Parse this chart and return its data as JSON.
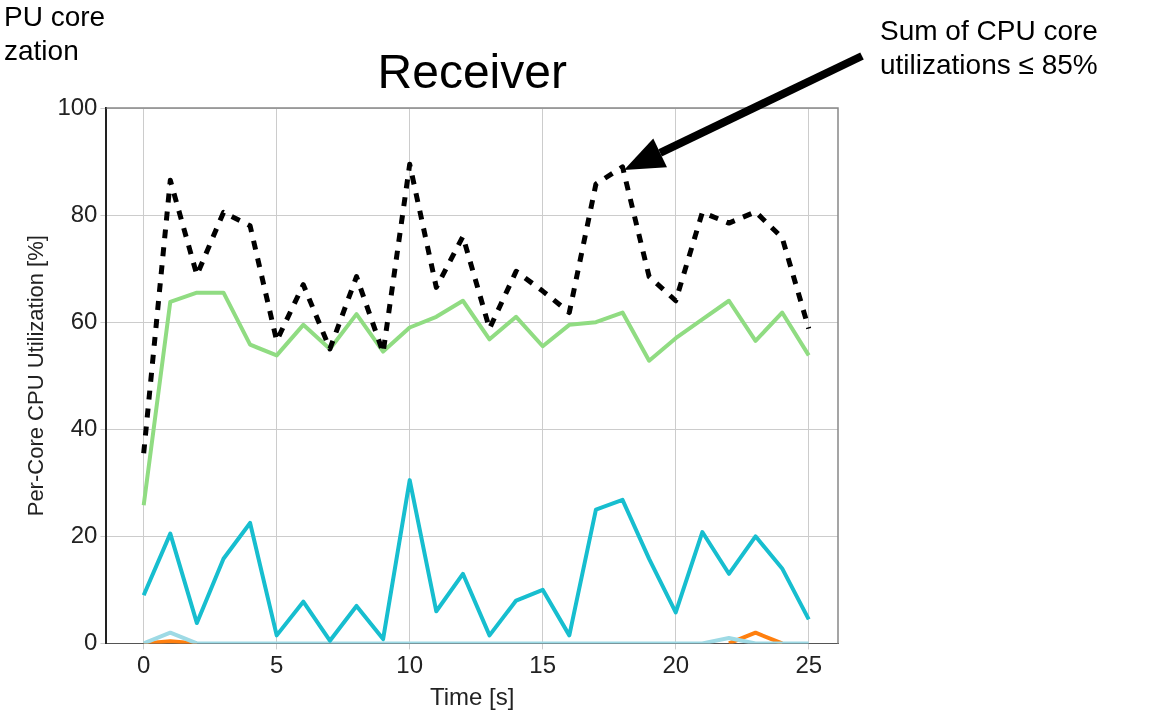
{
  "chart_data": {
    "type": "line",
    "title": "Receiver",
    "xlabel": "Time [s]",
    "ylabel": "Per-Core CPU Utilization [%]",
    "x": [
      0,
      1,
      2,
      3,
      4,
      5,
      6,
      7,
      8,
      9,
      10,
      11,
      12,
      13,
      14,
      15,
      16,
      17,
      18,
      19,
      20,
      21,
      22,
      23,
      24,
      25
    ],
    "series": [
      {
        "color": "#ff7f0e",
        "values": [
          0,
          0.4,
          0,
          null,
          null,
          null,
          null,
          null,
          null,
          null,
          null,
          null,
          null,
          null,
          null,
          null,
          null,
          null,
          null,
          null,
          null,
          null,
          0,
          2,
          0,
          null
        ]
      },
      {
        "color": "#9edae5",
        "values": [
          0,
          2,
          0,
          0,
          0,
          0,
          0,
          0,
          0,
          0,
          0,
          0,
          0,
          0,
          0,
          0,
          0,
          0,
          0,
          0,
          0,
          0,
          1,
          0,
          0,
          0
        ]
      },
      {
        "color": "#17becf",
        "values": [
          9,
          20.5,
          3.8,
          15.8,
          22.5,
          1.5,
          7.8,
          0.5,
          7,
          0.8,
          30.5,
          6,
          13,
          1.5,
          8,
          10,
          1.5,
          25,
          26.8,
          15.8,
          5.8,
          20.8,
          13,
          20,
          14,
          4.5
        ]
      },
      {
        "color": "#90dc82",
        "values": [
          25.8,
          63.8,
          65.5,
          65.5,
          55.8,
          53.8,
          59.5,
          55,
          61.5,
          54.5,
          59,
          61,
          64,
          56.8,
          61,
          55.5,
          59.5,
          60,
          61.8,
          52.8,
          57,
          60.5,
          64,
          56.5,
          61.8,
          53.8
        ]
      },
      {
        "color": "#000000",
        "line_style": "dashed",
        "values": [
          35.5,
          86.5,
          68.8,
          80.5,
          78,
          56.5,
          67,
          55,
          68.5,
          54.3,
          89.5,
          66.5,
          76,
          58.8,
          69.5,
          65.8,
          61.8,
          85.8,
          89,
          68.5,
          64,
          80.5,
          78.5,
          80.6,
          75.8,
          58.8
        ]
      }
    ],
    "xlim": [
      -1.4,
      26.1
    ],
    "xticks": [
      0,
      5,
      10,
      15,
      20,
      25
    ],
    "ylim": [
      0,
      100
    ],
    "yticks": [
      0,
      20,
      40,
      60,
      80,
      100
    ],
    "grid": true,
    "legend": false,
    "marker": "none",
    "line_style": "solid",
    "annotations": [
      "PU core\nzation",
      "Sum of CPU core utilizations ≤ 85%"
    ]
  }
}
